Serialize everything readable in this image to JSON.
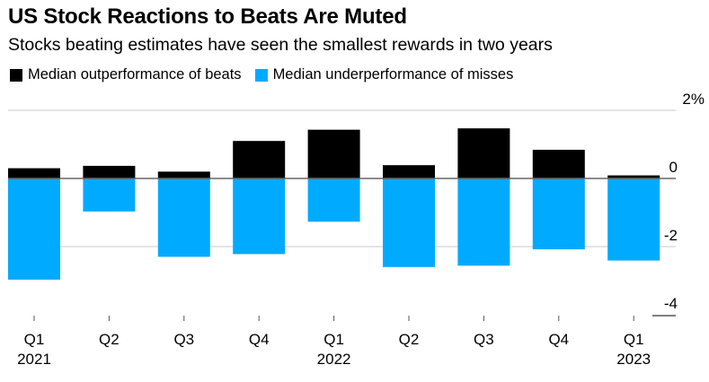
{
  "header": {
    "title": "US Stock Reactions to Beats Are Muted",
    "subtitle": "Stocks beating estimates have seen the smallest rewards in two years"
  },
  "legend": [
    {
      "label": "Median outperformance of beats",
      "color": "#000000"
    },
    {
      "label": "Median underperformance of misses",
      "color": "#00AAFF"
    }
  ],
  "chart_data": {
    "type": "bar",
    "stacked": "diverging",
    "title": "US Stock Reactions to Beats Are Muted",
    "subtitle": "Stocks beating estimates have seen the smallest rewards in two years",
    "xlabel": "",
    "ylabel": "",
    "categories": [
      "Q1 2021",
      "Q2 2021",
      "Q3 2021",
      "Q4 2021",
      "Q1 2022",
      "Q2 2022",
      "Q3 2022",
      "Q4 2022",
      "Q1 2023"
    ],
    "x_tick_labels": [
      {
        "line1": "Q1",
        "line2": "2021"
      },
      {
        "line1": "Q2",
        "line2": ""
      },
      {
        "line1": "Q3",
        "line2": ""
      },
      {
        "line1": "Q4",
        "line2": ""
      },
      {
        "line1": "Q1",
        "line2": "2022"
      },
      {
        "line1": "Q2",
        "line2": ""
      },
      {
        "line1": "Q3",
        "line2": ""
      },
      {
        "line1": "Q4",
        "line2": ""
      },
      {
        "line1": "Q1",
        "line2": "2023"
      }
    ],
    "series": [
      {
        "name": "Median outperformance of beats",
        "color": "#000000",
        "values": [
          0.3,
          0.37,
          0.2,
          1.1,
          1.43,
          0.39,
          1.47,
          0.84,
          0.09
        ]
      },
      {
        "name": "Median underperformance of misses",
        "color": "#00AAFF",
        "values": [
          -2.97,
          -0.97,
          -2.3,
          -2.22,
          -1.27,
          -2.6,
          -2.56,
          -2.08,
          -2.41
        ]
      }
    ],
    "ylim": [
      -4,
      2
    ],
    "y_ticks": [
      2,
      0,
      -2,
      -4
    ],
    "y_tick_labels": [
      "2%",
      "0",
      "-2",
      "-4"
    ],
    "y_axis_position": "right",
    "grid": true,
    "legend_position": "top-left"
  }
}
